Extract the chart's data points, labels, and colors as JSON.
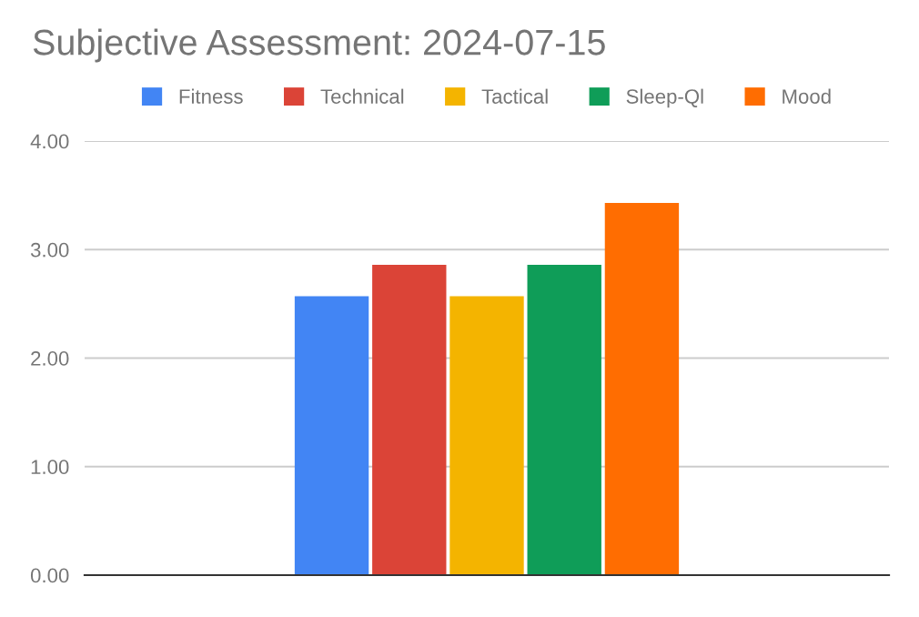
{
  "chart_data": {
    "type": "bar",
    "title": "Subjective Assessment: 2024-07-15",
    "categories": [
      null
    ],
    "series": [
      {
        "name": "Fitness",
        "color": "#4285f4",
        "values": [
          2.57
        ]
      },
      {
        "name": "Technical",
        "color": "#db4437",
        "values": [
          2.86
        ]
      },
      {
        "name": "Tactical",
        "color": "#f4b400",
        "values": [
          2.57
        ]
      },
      {
        "name": "Sleep-Ql",
        "color": "#0f9d58",
        "values": [
          2.86
        ]
      },
      {
        "name": "Mood",
        "color": "#ff6d01",
        "values": [
          3.43
        ]
      }
    ],
    "ylim": [
      0,
      4
    ],
    "yticks": [
      {
        "value": 0,
        "label": "0.00"
      },
      {
        "value": 1,
        "label": "1.00"
      },
      {
        "value": 2,
        "label": "2.00"
      },
      {
        "value": 3,
        "label": "3.00"
      },
      {
        "value": 4,
        "label": "4.00"
      }
    ],
    "grid": "y",
    "legend": "top",
    "tick_labels": "y"
  }
}
